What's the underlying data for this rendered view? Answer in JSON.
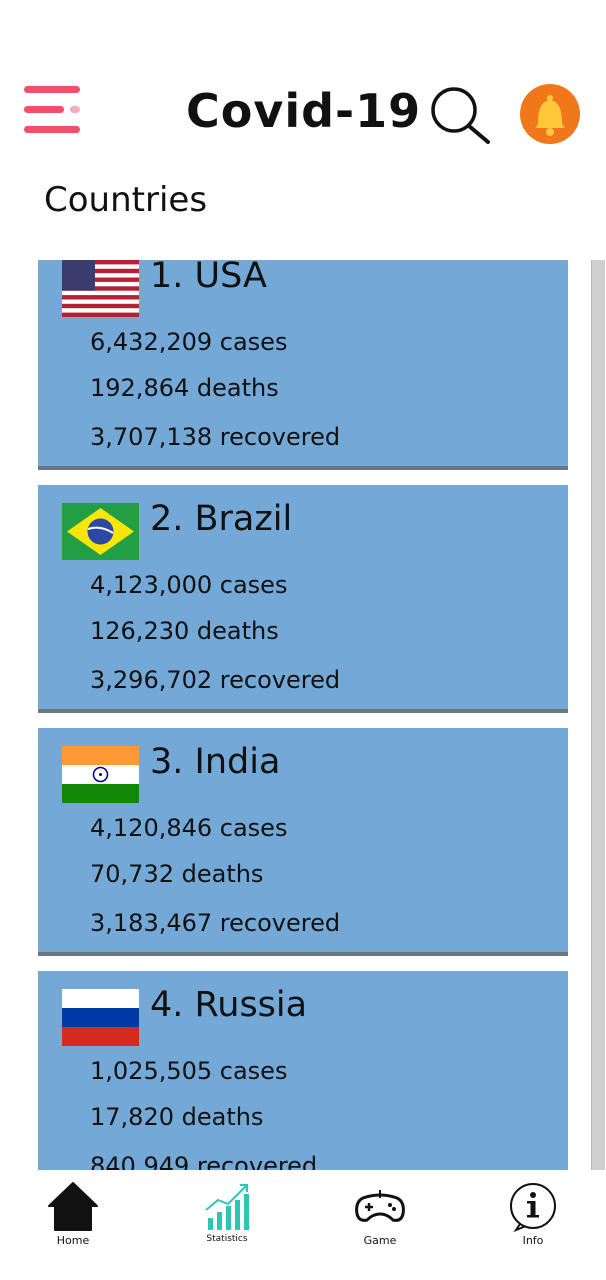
{
  "header": {
    "title": "Covid-19",
    "menu_icon": "hamburger-menu-icon",
    "search_icon": "search-icon",
    "bell_icon": "bell-icon",
    "accent_color": "#f0506a",
    "bell_color": "#f0781a"
  },
  "section": {
    "title": "Countries"
  },
  "countries": [
    {
      "name": "1. USA",
      "flag_icon": "usa-flag-icon",
      "cases": "6,432,209 cases",
      "deaths": "192,864 deaths",
      "recovered": "3,707,138 recovered"
    },
    {
      "name": "2. Brazil",
      "flag_icon": "brazil-flag-icon",
      "cases": "4,123,000 cases",
      "deaths": "126,230 deaths",
      "recovered": "3,296,702 recovered"
    },
    {
      "name": "3. India",
      "flag_icon": "india-flag-icon",
      "cases": "4,120,846 cases",
      "deaths": "70,732 deaths",
      "recovered": "3,183,467 recovered"
    },
    {
      "name": "4. Russia",
      "flag_icon": "russia-flag-icon",
      "cases": "1,025,505 cases",
      "deaths": "17,820 deaths",
      "recovered": "840,949 recovered"
    }
  ],
  "card_color": "#74a8d7",
  "nav": {
    "items": [
      {
        "label": "Home",
        "icon": "home-icon"
      },
      {
        "label": "Statistics",
        "icon": "statistics-chart-icon"
      },
      {
        "label": "Game",
        "icon": "gamepad-icon"
      },
      {
        "label": "Info",
        "icon": "info-icon"
      }
    ]
  }
}
